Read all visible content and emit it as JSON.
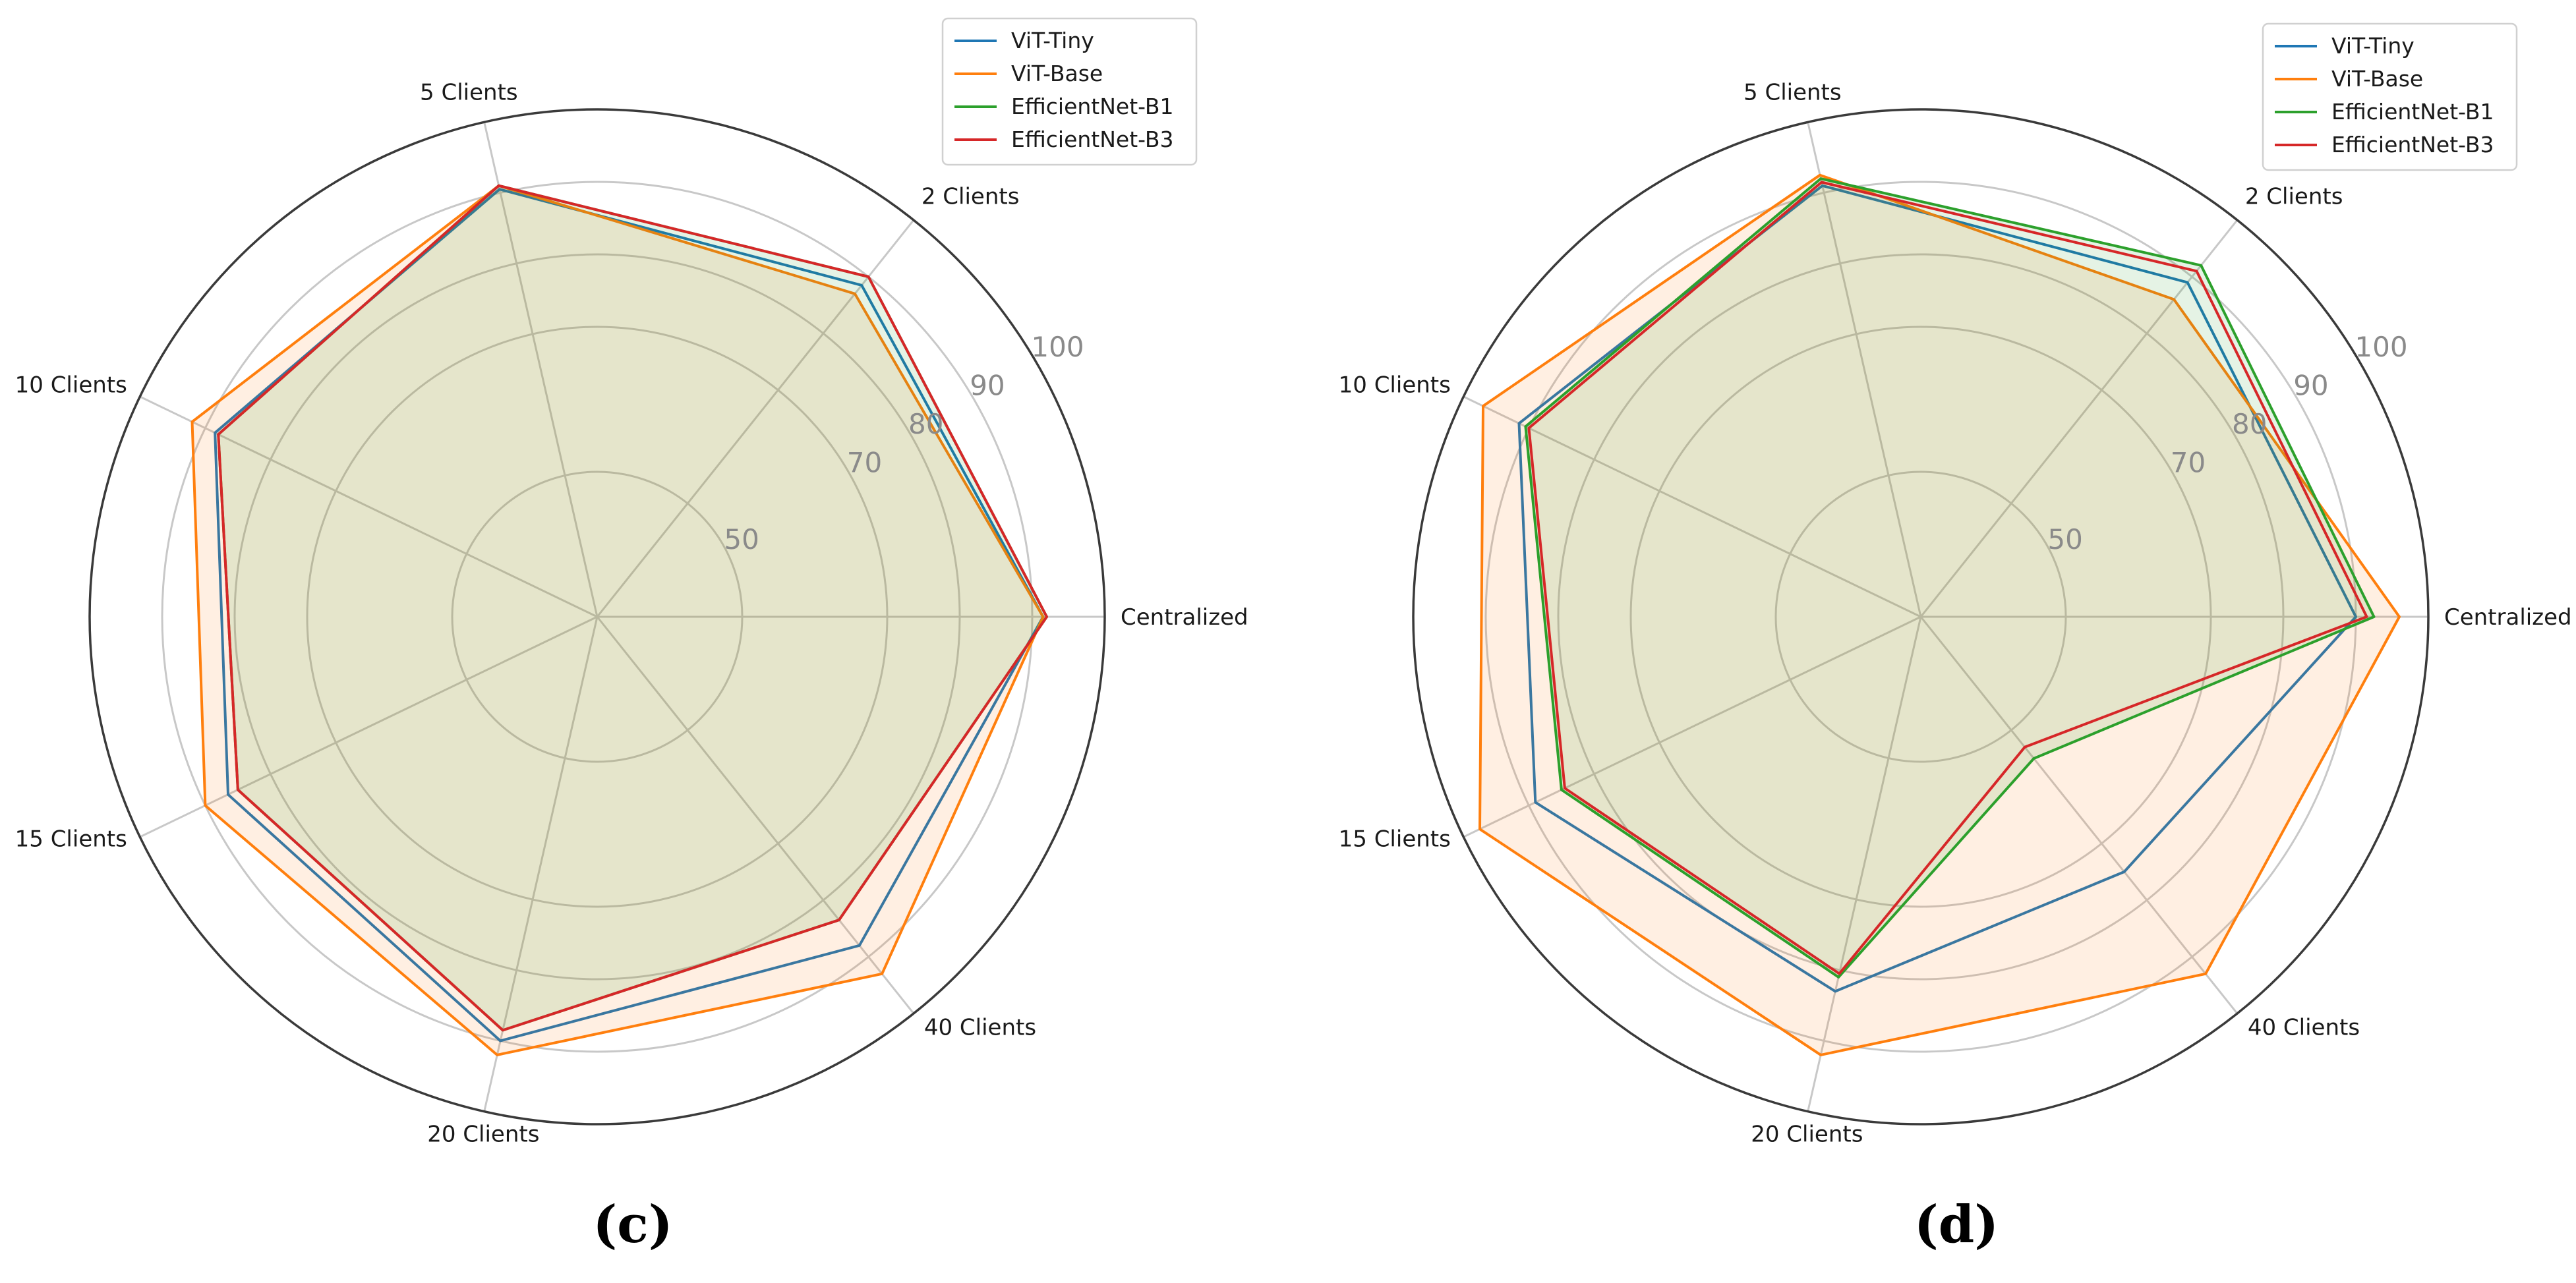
{
  "colors": {
    "ViT-Tiny": "#1f77b4",
    "ViT-Base": "#ff7f0e",
    "EfficientNet-B1": "#2ca02c",
    "EfficientNet-B3": "#d62728",
    "grid": "#c8c8c8",
    "outer": "#3a3a3a"
  },
  "chart_data": [
    {
      "type": "radar",
      "panel_label": "(c)",
      "axes": [
        "Centralized",
        "2 Clients",
        "5 Clients",
        "10 Clients",
        "15 Clients",
        "20 Clients",
        "40 Clients"
      ],
      "radial_ticks": [
        50,
        70,
        80,
        90,
        100
      ],
      "radial_tick_labels": [
        "50",
        "70",
        "80",
        "90",
        "100"
      ],
      "rlim": [
        30,
        100
      ],
      "legend_position": "top-right",
      "series": [
        {
          "name": "ViT-Tiny",
          "values": [
            91.5,
            88.5,
            90.5,
            88.5,
            86.5,
            90.0,
            88.0
          ],
          "fill": false
        },
        {
          "name": "ViT-Base",
          "values": [
            91.5,
            87.0,
            91.0,
            92.0,
            90.0,
            92.0,
            93.0
          ],
          "fill": true
        },
        {
          "name": "EfficientNet-B1",
          "values": [
            92.0,
            90.0,
            91.0,
            88.0,
            85.0,
            88.5,
            83.5
          ],
          "fill": true
        },
        {
          "name": "EfficientNet-B3",
          "values": [
            92.0,
            90.0,
            91.0,
            88.0,
            85.0,
            88.5,
            83.5
          ],
          "fill": false
        }
      ]
    },
    {
      "type": "radar",
      "panel_label": "(d)",
      "axes": [
        "Centralized",
        "2 Clients",
        "5 Clients",
        "10 Clients",
        "15 Clients",
        "20 Clients",
        "40 Clients"
      ],
      "radial_ticks": [
        50,
        70,
        80,
        90,
        100
      ],
      "radial_tick_labels": [
        "50",
        "70",
        "80",
        "90",
        "100"
      ],
      "rlim": [
        30,
        100
      ],
      "legend_position": "top-right",
      "series": [
        {
          "name": "ViT-Tiny",
          "values": [
            90.0,
            89.0,
            91.0,
            91.5,
            89.0,
            83.0,
            75.0
          ],
          "fill": false
        },
        {
          "name": "ViT-Base",
          "values": [
            96.0,
            86.0,
            92.5,
            97.0,
            97.5,
            92.0,
            93.0
          ],
          "fill": true
        },
        {
          "name": "EfficientNet-B1",
          "values": [
            92.5,
            92.0,
            92.0,
            90.5,
            85.0,
            81.0,
            55.0
          ],
          "fill": true
        },
        {
          "name": "EfficientNet-B3",
          "values": [
            91.5,
            91.0,
            91.5,
            90.0,
            84.5,
            80.5,
            53.0
          ],
          "fill": false
        }
      ]
    }
  ]
}
